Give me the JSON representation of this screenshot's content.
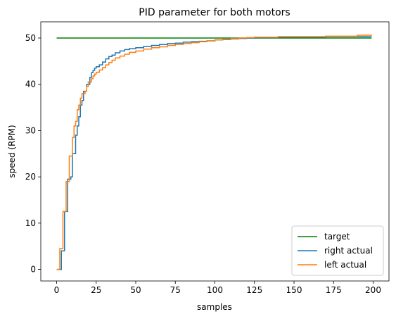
{
  "chart_data": {
    "type": "line",
    "title": "PID parameter for both motors",
    "xlabel": "samples",
    "ylabel": "speed (RPM)",
    "xlim": [
      -10,
      210
    ],
    "ylim": [
      -2.5,
      53.5
    ],
    "xticks": [
      0,
      25,
      50,
      75,
      100,
      125,
      150,
      175,
      200
    ],
    "yticks": [
      0,
      10,
      20,
      30,
      40,
      50
    ],
    "grid": false,
    "legend_position": "lower-right",
    "series": [
      {
        "name": "target",
        "color": "#008000",
        "x": [
          0,
          199
        ],
        "y": [
          50,
          50
        ]
      },
      {
        "name": "right actual",
        "color": "#1f77b4",
        "x": [
          0,
          2,
          3,
          4,
          5,
          6,
          7,
          8,
          9,
          10,
          11,
          12,
          13,
          14,
          15,
          16,
          17,
          18,
          19,
          20,
          21,
          22,
          23,
          24,
          25,
          27,
          29,
          31,
          33,
          35,
          37,
          40,
          43,
          46,
          50,
          55,
          60,
          65,
          70,
          75,
          80,
          85,
          90,
          95,
          100,
          105,
          110,
          115,
          120,
          125,
          130,
          140,
          150,
          160,
          170,
          180,
          190,
          199
        ],
        "y": [
          0,
          0,
          4,
          4,
          12.5,
          12.5,
          19.5,
          19.5,
          20,
          25,
          25,
          29,
          31,
          33,
          35.5,
          36.5,
          38.5,
          38.5,
          40,
          40,
          41.5,
          42.5,
          43,
          43.5,
          43.8,
          44.2,
          44.8,
          45.5,
          46,
          46.3,
          46.8,
          47.2,
          47.5,
          47.7,
          47.9,
          48.2,
          48.4,
          48.6,
          48.8,
          48.9,
          49.1,
          49.2,
          49.3,
          49.4,
          49.6,
          49.7,
          49.8,
          49.9,
          50,
          50.1,
          50.1,
          50.2,
          50.2,
          50.2,
          50.3,
          50.3,
          50.3,
          50.3
        ]
      },
      {
        "name": "left actual",
        "color": "#ff7f0e",
        "x": [
          0,
          1,
          2,
          3,
          4,
          5,
          6,
          7,
          8,
          9,
          10,
          11,
          12,
          13,
          14,
          15,
          16,
          17,
          18,
          19,
          20,
          21,
          22,
          23,
          24,
          25,
          27,
          29,
          31,
          33,
          35,
          37,
          40,
          43,
          46,
          50,
          55,
          60,
          65,
          70,
          75,
          80,
          85,
          90,
          95,
          100,
          105,
          110,
          115,
          120,
          125,
          130,
          140,
          150,
          160,
          170,
          180,
          190,
          199
        ],
        "y": [
          0,
          0,
          4.5,
          4.5,
          12.5,
          12.5,
          19,
          19,
          24.5,
          24.5,
          28.5,
          31,
          32,
          34.5,
          35.5,
          37,
          38,
          38,
          38.5,
          39.5,
          40.5,
          40.5,
          41.2,
          41.8,
          42.2,
          42.6,
          43.1,
          43.6,
          44.2,
          44.7,
          45.2,
          45.7,
          46.1,
          46.5,
          46.9,
          47.2,
          47.6,
          47.9,
          48.1,
          48.4,
          48.6,
          48.8,
          49,
          49.2,
          49.4,
          49.6,
          49.8,
          49.9,
          50,
          50.1,
          50.2,
          50.2,
          50.3,
          50.3,
          50.3,
          50.4,
          50.4,
          50.6,
          50.7
        ]
      }
    ]
  }
}
